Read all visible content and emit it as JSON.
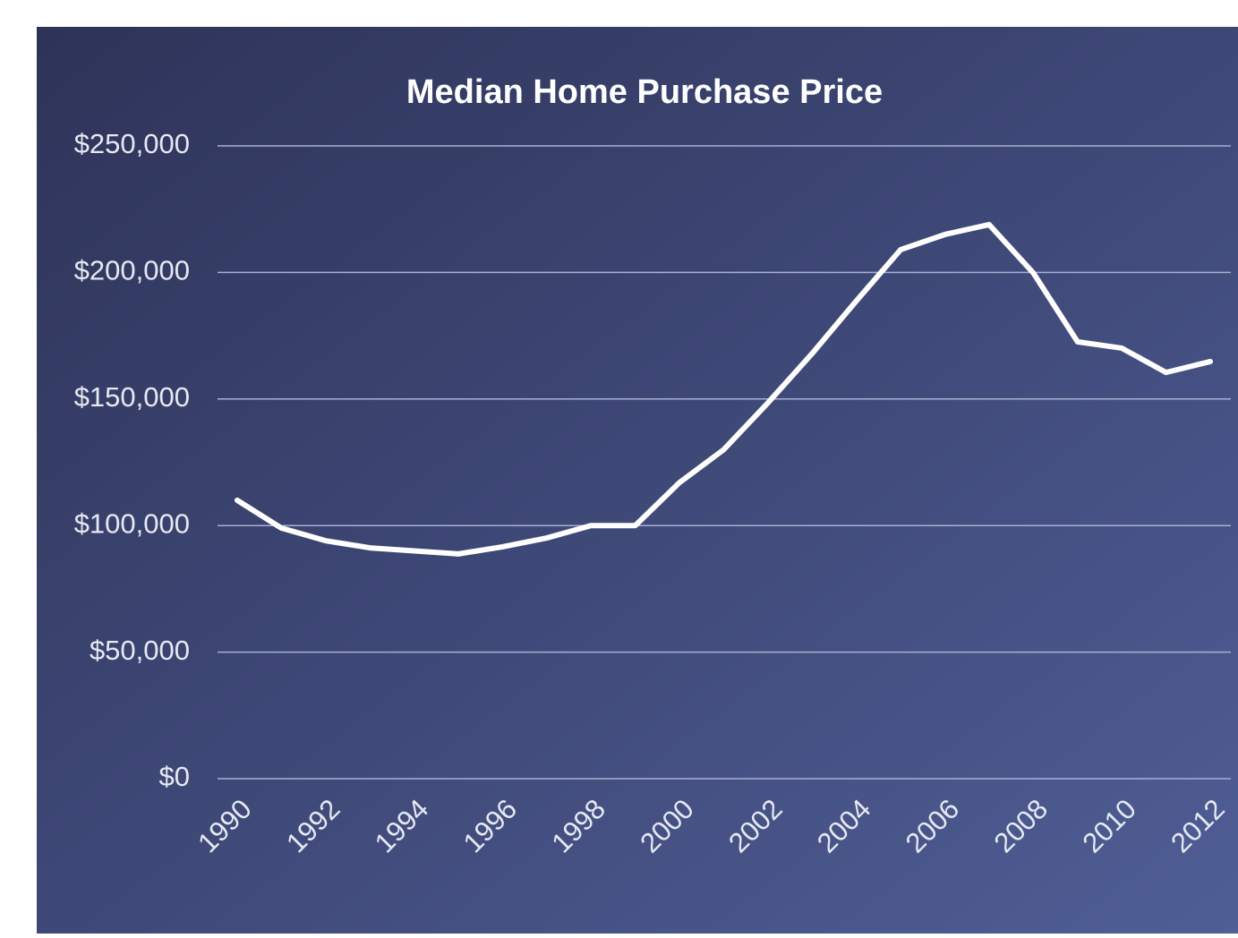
{
  "chart_data": {
    "type": "line",
    "title": "Median Home Purchase Price",
    "x": [
      1990,
      1991,
      1992,
      1993,
      1994,
      1995,
      1996,
      1997,
      1998,
      1999,
      2000,
      2001,
      2002,
      2003,
      2004,
      2005,
      2006,
      2007,
      2008,
      2009,
      2010,
      2011,
      2012
    ],
    "values": [
      110000,
      99000,
      94000,
      91200,
      90000,
      88800,
      91600,
      95100,
      100000,
      100000,
      117000,
      130000,
      148500,
      168000,
      188800,
      209000,
      215000,
      218900,
      199800,
      172600,
      170100,
      160500,
      164800
    ],
    "color": "#ffffff",
    "xlim": [
      1990,
      2012
    ],
    "xticks": [
      1990,
      1992,
      1994,
      1996,
      1998,
      2000,
      2002,
      2004,
      2006,
      2008,
      2010,
      2012
    ],
    "ylim": [
      0,
      250000
    ],
    "yticks": [
      {
        "value": 0,
        "label": "$0"
      },
      {
        "value": 50000,
        "label": "$50,000"
      },
      {
        "value": 100000,
        "label": "$100,000"
      },
      {
        "value": 150000,
        "label": "$150,000"
      },
      {
        "value": 200000,
        "label": "$200,000"
      },
      {
        "value": 250000,
        "label": "$250,000"
      }
    ],
    "grid": true
  }
}
